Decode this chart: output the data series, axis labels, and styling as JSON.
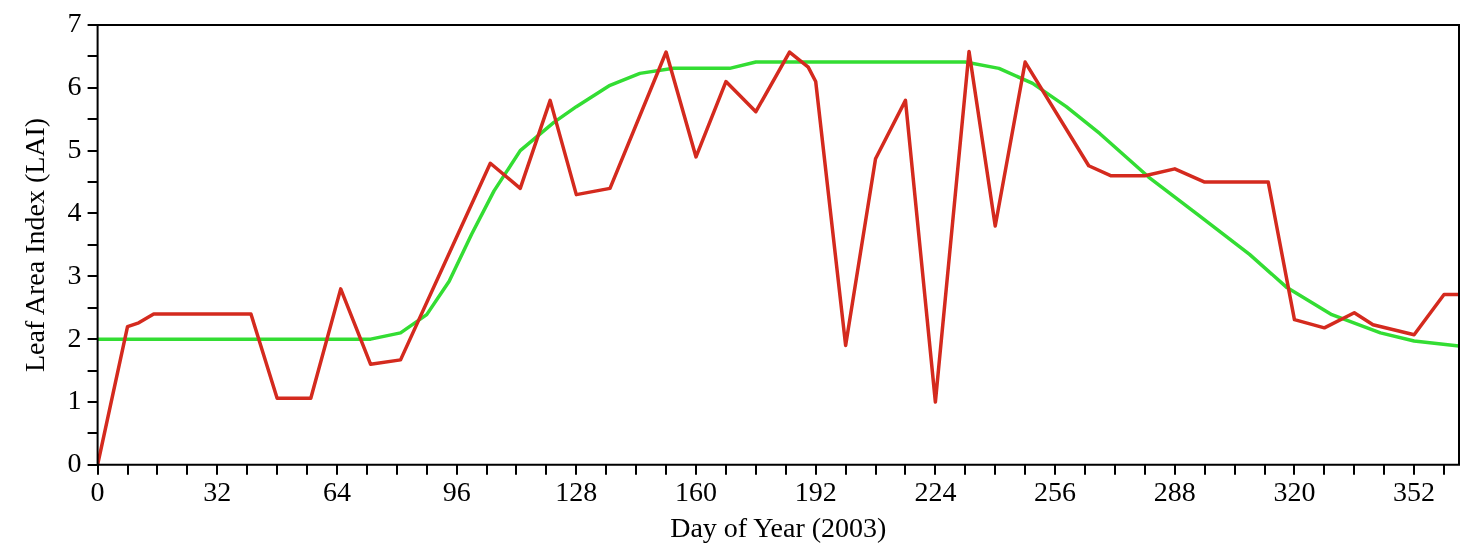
{
  "chart_data": {
    "type": "line",
    "xlabel": "Day of Year (2003)",
    "ylabel": "Leaf Area Index (LAI)",
    "xlim": [
      0,
      364
    ],
    "ylim": [
      0,
      7
    ],
    "xticks": [
      0,
      {
        "value": 8,
        "label": null
      },
      {
        "value": 16,
        "label": null
      },
      {
        "value": 24,
        "label": null
      },
      32,
      {
        "value": 40,
        "label": null
      },
      {
        "value": 48,
        "label": null
      },
      {
        "value": 56,
        "label": null
      },
      64,
      {
        "value": 72,
        "label": null
      },
      {
        "value": 80,
        "label": null
      },
      {
        "value": 88,
        "label": null
      },
      96,
      {
        "value": 104,
        "label": null
      },
      {
        "value": 112,
        "label": null
      },
      {
        "value": 120,
        "label": null
      },
      128,
      {
        "value": 136,
        "label": null
      },
      {
        "value": 144,
        "label": null
      },
      {
        "value": 152,
        "label": null
      },
      160,
      {
        "value": 168,
        "label": null
      },
      {
        "value": 176,
        "label": null
      },
      {
        "value": 184,
        "label": null
      },
      192,
      {
        "value": 200,
        "label": null
      },
      {
        "value": 208,
        "label": null
      },
      {
        "value": 216,
        "label": null
      },
      224,
      {
        "value": 232,
        "label": null
      },
      {
        "value": 240,
        "label": null
      },
      {
        "value": 248,
        "label": null
      },
      256,
      {
        "value": 264,
        "label": null
      },
      {
        "value": 272,
        "label": null
      },
      {
        "value": 280,
        "label": null
      },
      288,
      {
        "value": 296,
        "label": null
      },
      {
        "value": 304,
        "label": null
      },
      {
        "value": 312,
        "label": null
      },
      320,
      {
        "value": 328,
        "label": null
      },
      {
        "value": 336,
        "label": null
      },
      {
        "value": 344,
        "label": null
      },
      352,
      {
        "value": 360,
        "label": null
      }
    ],
    "yticks": [
      0,
      {
        "value": 0.5,
        "label": null
      },
      1,
      {
        "value": 1.5,
        "label": null
      },
      2,
      {
        "value": 2.5,
        "label": null
      },
      3,
      {
        "value": 3.5,
        "label": null
      },
      4,
      {
        "value": 4.5,
        "label": null
      },
      5,
      {
        "value": 5.5,
        "label": null
      },
      6,
      {
        "value": 6.5,
        "label": null
      },
      7
    ],
    "grid": false,
    "legend": false,
    "marker": "none",
    "line_style": "solid",
    "series": [
      {
        "color": "#d42a1e",
        "x": [
          0,
          8,
          11,
          15,
          41,
          48,
          57,
          65,
          73,
          81,
          105,
          113,
          121,
          128,
          137,
          152,
          160,
          168,
          176,
          185,
          190,
          192,
          200,
          208,
          216,
          224,
          233,
          240,
          248,
          265,
          271,
          280,
          288,
          296,
          313,
          320,
          328,
          336,
          341,
          352,
          360,
          364
        ],
        "values": [
          0,
          2.2,
          2.26,
          2.4,
          2.4,
          1.06,
          1.06,
          2.8,
          1.6,
          1.67,
          4.8,
          4.4,
          5.8,
          4.3,
          4.4,
          6.57,
          4.9,
          6.1,
          5.62,
          6.57,
          6.33,
          6.1,
          1.9,
          4.87,
          5.8,
          1.0,
          6.58,
          3.8,
          6.41,
          4.76,
          4.6,
          4.6,
          4.71,
          4.5,
          4.5,
          2.31,
          2.18,
          2.42,
          2.23,
          2.07,
          2.71,
          2.71
        ]
      },
      {
        "color": "#33dd33",
        "x": [
          0,
          40,
          73,
          81,
          88,
          94,
          100,
          106,
          113,
          122,
          128,
          137,
          145,
          154,
          169,
          176,
          232,
          241,
          250,
          259,
          268,
          281,
          294,
          308,
          318,
          330,
          343,
          352,
          364
        ],
        "values": [
          2,
          2,
          2,
          2.1,
          2.39,
          2.92,
          3.67,
          4.36,
          5.0,
          5.45,
          5.7,
          6.04,
          6.23,
          6.31,
          6.31,
          6.41,
          6.41,
          6.31,
          6.07,
          5.7,
          5.27,
          4.58,
          3.99,
          3.35,
          2.82,
          2.39,
          2.1,
          1.97,
          1.89
        ]
      }
    ]
  }
}
